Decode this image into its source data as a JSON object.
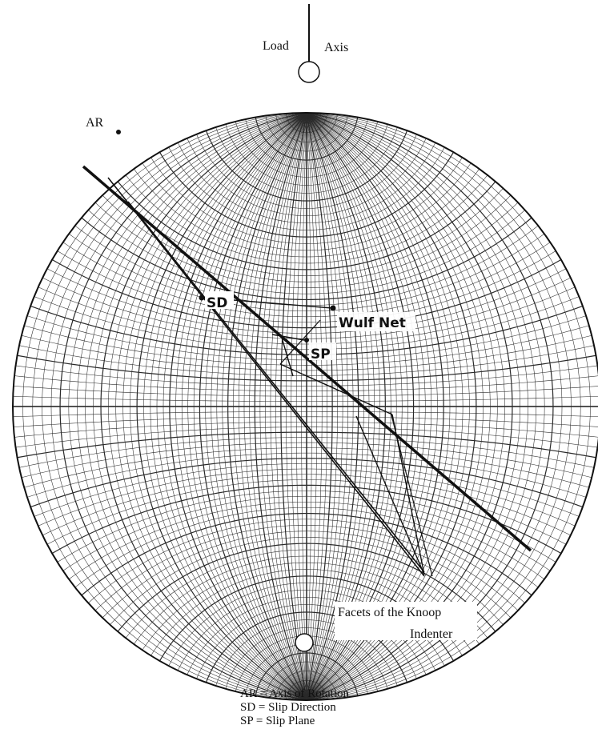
{
  "diagram": {
    "labels": {
      "load": "Load",
      "axis": "Axis",
      "ar": "AR",
      "sd": "SD",
      "sp": "SP",
      "wulff_net": "Wulf Net",
      "facets_line1": "Facets of the Knoop",
      "facets_line2": "Indenter"
    },
    "legend": [
      "AR = Axis of Rotation",
      "SD = Slip Direction",
      "SP = Slip Plane"
    ],
    "colors": {
      "ink": "#111111",
      "grid": "#2a2a2a",
      "background": "#ffffff"
    }
  }
}
